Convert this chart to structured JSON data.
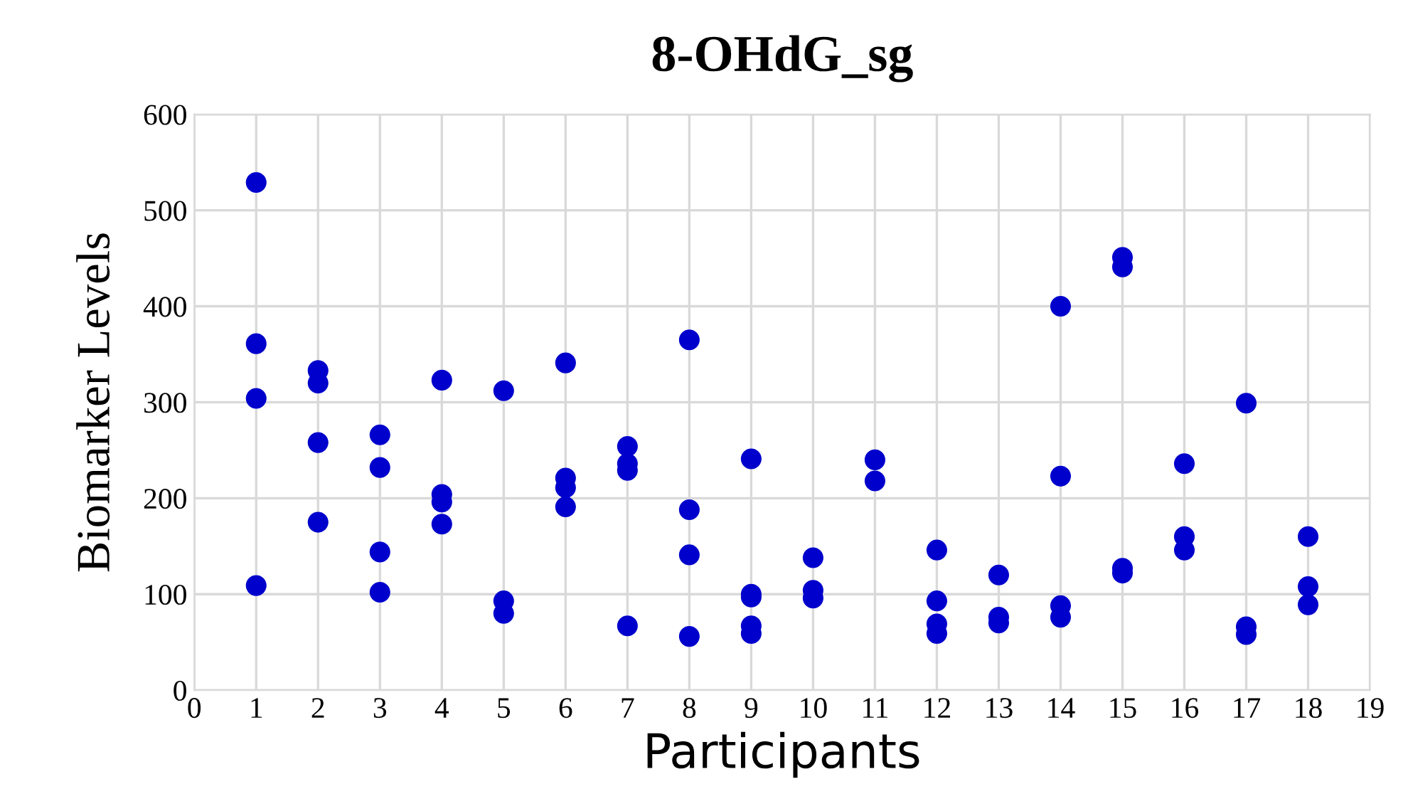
{
  "chart_data": {
    "type": "scatter",
    "title": "8-OHdG_sg",
    "xlabel": "Participants",
    "ylabel": "Biomarker Levels",
    "series": [
      {
        "color": "#0000cc",
        "x": [
          1,
          1,
          1,
          1,
          2,
          2,
          2,
          2,
          3,
          3,
          3,
          3,
          4,
          4,
          4,
          4,
          5,
          5,
          5,
          6,
          6,
          6,
          6,
          7,
          7,
          7,
          7,
          8,
          8,
          8,
          8,
          9,
          9,
          9,
          9,
          9,
          10,
          10,
          10,
          11,
          11,
          12,
          12,
          12,
          12,
          13,
          13,
          13,
          14,
          14,
          14,
          14,
          15,
          15,
          15,
          15,
          16,
          16,
          16,
          17,
          17,
          17,
          18,
          18,
          18
        ],
        "values": [
          529,
          361,
          304,
          109,
          333,
          320,
          258,
          175,
          266,
          232,
          144,
          102,
          323,
          204,
          196,
          173,
          312,
          93,
          80,
          341,
          221,
          211,
          191,
          254,
          236,
          229,
          67,
          365,
          188,
          141,
          56,
          241,
          100,
          97,
          67,
          59,
          138,
          104,
          96,
          240,
          218,
          146,
          93,
          69,
          59,
          120,
          76,
          70,
          400,
          223,
          88,
          76,
          451,
          441,
          127,
          122,
          236,
          160,
          146,
          299,
          66,
          58,
          160,
          108,
          89
        ]
      }
    ],
    "xlim": [
      0,
      19
    ],
    "xticks": [
      0,
      1,
      2,
      3,
      4,
      5,
      6,
      7,
      8,
      9,
      10,
      11,
      12,
      13,
      14,
      15,
      16,
      17,
      18,
      19
    ],
    "ylim": [
      0,
      600
    ],
    "yticks": [
      0,
      100,
      200,
      300,
      400,
      500,
      600
    ],
    "grid": true,
    "marker": "circle"
  }
}
